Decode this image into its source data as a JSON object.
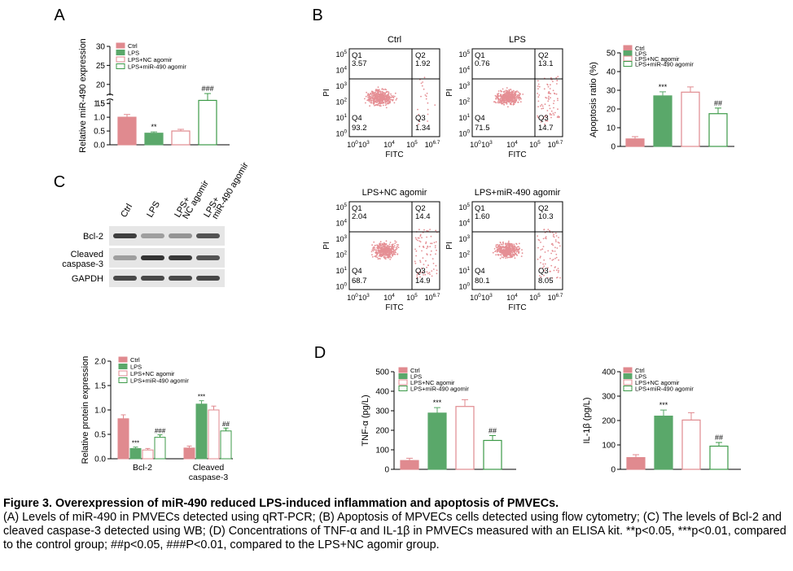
{
  "colors": {
    "ctrl": "#e08a8f",
    "lps": "#5aa86a",
    "nc_stroke": "#e08a8f",
    "mir_stroke": "#3c9a48",
    "gate": "#000000",
    "dots": "#e58f94"
  },
  "panel_labels": {
    "a": "A",
    "b": "B",
    "c": "C",
    "d": "D"
  },
  "legend": [
    "Ctrl",
    "LPS",
    "LPS+NC agomir",
    "LPS+miR-490 agomir"
  ],
  "flow": {
    "xlabel": "FITC",
    "ylabel": "PI",
    "xticks": [
      "10^0",
      "10^3",
      "10^4",
      "10^5",
      "10^6.7"
    ],
    "yticks": [
      "10^5",
      "10^4",
      "10^3",
      "10^2",
      "10^1",
      "10^0"
    ],
    "plots": [
      {
        "title": "Ctrl",
        "q1": "3.57",
        "q2": "1.92",
        "q3": "1.34",
        "q4": "93.2"
      },
      {
        "title": "LPS",
        "q1": "0.76",
        "q2": "13.1",
        "q3": "14.7",
        "q4": "71.5"
      },
      {
        "title": "LPS+NC agomir",
        "q1": "2.04",
        "q2": "14.4",
        "q3": "14.9",
        "q4": "68.7"
      },
      {
        "title": "LPS+miR-490 agomir",
        "q1": "1.60",
        "q2": "10.3",
        "q3": "8.05",
        "q4": "80.1"
      }
    ]
  },
  "western": {
    "lanes": [
      "Ctrl",
      "LPS",
      "LPS+ NC agomir",
      "LPS+ miR-490 agomir"
    ],
    "rows": [
      "Bcl-2",
      "Cleaved caspase-3",
      "GAPDH"
    ],
    "intensity": [
      [
        0.9,
        0.45,
        0.5,
        0.8
      ],
      [
        0.45,
        0.95,
        0.92,
        0.8
      ],
      [
        0.85,
        0.85,
        0.85,
        0.85
      ]
    ]
  },
  "chart_data": [
    {
      "id": "A",
      "type": "bar",
      "ylabel": "Relative miR-490 expression",
      "yticks": [
        "0.0",
        "0.5",
        "1.0",
        "1.5",
        "15",
        "20",
        "25",
        "30"
      ],
      "ylim": [
        0,
        30
      ],
      "axis_break": [
        1.5,
        15
      ],
      "categories": [
        "Ctrl",
        "LPS",
        "LPS+NC agomir",
        "LPS+miR-490 agomir"
      ],
      "values": [
        1.0,
        0.42,
        0.5,
        15.8
      ],
      "errors": [
        0.1,
        0.05,
        0.06,
        1.8
      ],
      "annotations": [
        "",
        "**",
        "",
        "###"
      ]
    },
    {
      "id": "B",
      "type": "bar",
      "ylabel": "Apoptosis ratio (%)",
      "yticks": [
        "0",
        "10",
        "20",
        "30",
        "40",
        "50"
      ],
      "ylim": [
        0,
        50
      ],
      "categories": [
        "Ctrl",
        "LPS",
        "LPS+NC agomir",
        "LPS+miR-490 agomir"
      ],
      "values": [
        4.0,
        27.0,
        29.0,
        17.5
      ],
      "errors": [
        1.2,
        2.2,
        2.8,
        3.0
      ],
      "annotations": [
        "",
        "***",
        "",
        "##"
      ]
    },
    {
      "id": "C",
      "type": "bar",
      "ylabel": "Relative protein expression",
      "yticks": [
        "0.0",
        "0.5",
        "1.0",
        "1.5",
        "2.0"
      ],
      "ylim": [
        0,
        2.0
      ],
      "categories": [
        "Bcl-2",
        "Cleaved caspase-3"
      ],
      "series": [
        {
          "name": "Ctrl",
          "values": [
            0.82,
            0.22
          ],
          "errors": [
            0.08,
            0.04
          ]
        },
        {
          "name": "LPS",
          "values": [
            0.21,
            1.12
          ],
          "errors": [
            0.03,
            0.07
          ]
        },
        {
          "name": "LPS+NC agomir",
          "values": [
            0.18,
            1.0
          ],
          "errors": [
            0.03,
            0.08
          ]
        },
        {
          "name": "LPS+miR-490 agomir",
          "values": [
            0.44,
            0.57
          ],
          "errors": [
            0.05,
            0.06
          ]
        }
      ],
      "annotations": [
        [
          "",
          "***",
          "",
          "###"
        ],
        [
          "",
          "***",
          "",
          "##"
        ]
      ]
    },
    {
      "id": "D1",
      "type": "bar",
      "ylabel": "TNF-α (pg/L)",
      "yticks": [
        "0",
        "100",
        "200",
        "300",
        "400",
        "500"
      ],
      "ylim": [
        0,
        500
      ],
      "categories": [
        "Ctrl",
        "LPS",
        "LPS+NC agomir",
        "LPS+miR-490 agomir"
      ],
      "values": [
        45,
        288,
        322,
        148
      ],
      "errors": [
        12,
        28,
        35,
        25
      ],
      "annotations": [
        "",
        "***",
        "",
        "##"
      ]
    },
    {
      "id": "D2",
      "type": "bar",
      "ylabel": "IL-1β (pg/L)",
      "yticks": [
        "0",
        "100",
        "200",
        "300",
        "400"
      ],
      "ylim": [
        0,
        400
      ],
      "categories": [
        "Ctrl",
        "LPS",
        "LPS+NC agomir",
        "LPS+miR-490 agomir"
      ],
      "values": [
        48,
        218,
        202,
        95
      ],
      "errors": [
        12,
        25,
        30,
        15
      ],
      "annotations": [
        "",
        "***",
        "",
        "##"
      ]
    }
  ],
  "caption": {
    "title": "Figure 3. Overexpression of miR-490 reduced LPS-induced inflammation and apoptosis of PMVECs.",
    "body": "(A) Levels of miR-490 in PMVECs detected using qRT-PCR; (B) Apoptosis of MPVECs cells detected using flow cytometry; (C) The levels of Bcl-2 and cleaved caspase-3 detected using WB; (D) Concentrations of TNF-α and IL-1β in PMVECs measured with an ELISA kit. **p<0.05, ***p<0.01, compared to the control group; ##p<0.05, ###P<0.01, compared to the LPS+NC agomir group."
  }
}
